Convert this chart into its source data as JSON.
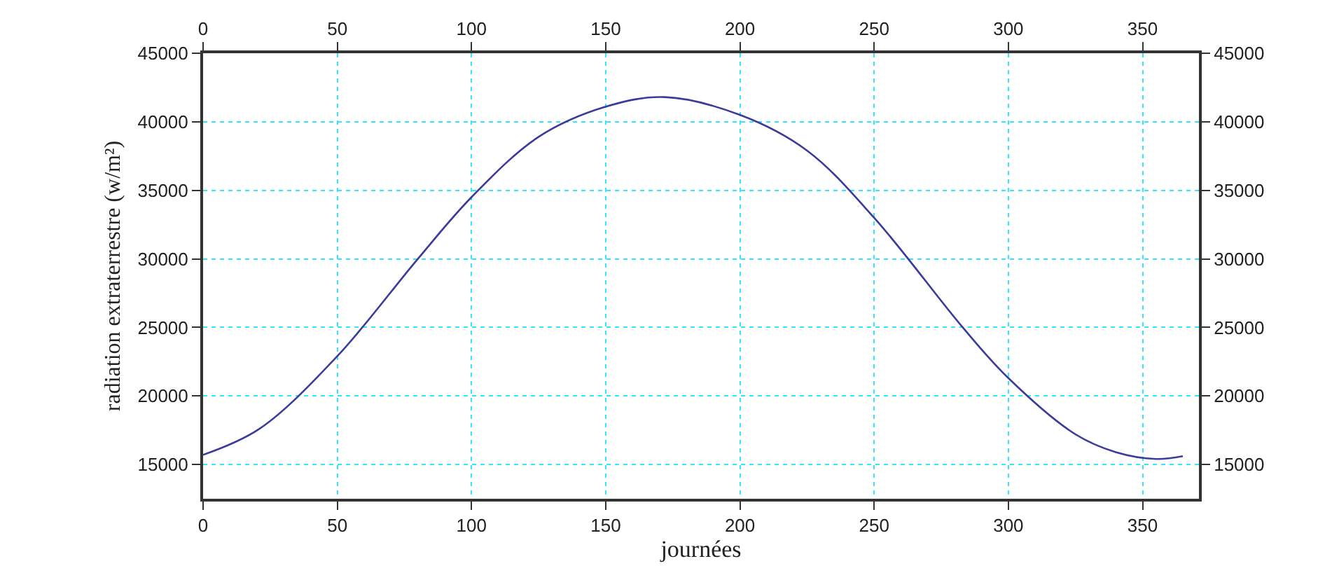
{
  "chart_data": {
    "type": "line",
    "xlabel": "journées",
    "ylabel": "radiation extraterrestre (w/m²)",
    "xlim": [
      0,
      371
    ],
    "xticks": [
      0,
      50,
      100,
      150,
      200,
      250,
      300,
      350
    ],
    "x2lim": [
      0,
      371
    ],
    "x2ticks": [
      0,
      50,
      100,
      150,
      200,
      250,
      300,
      350
    ],
    "ylim": [
      12500,
      45000
    ],
    "yticks": [
      15000,
      20000,
      25000,
      30000,
      35000,
      40000,
      45000
    ],
    "y2lim": [
      12500,
      45000
    ],
    "y2ticks": [
      15000,
      20000,
      25000,
      30000,
      35000,
      40000,
      45000
    ],
    "grid": true,
    "marker": "none",
    "line_style": "solid",
    "series": [
      {
        "color": "#3b3b9c",
        "x": [
          0,
          21,
          50,
          80,
          100,
          125,
          150,
          172,
          200,
          225,
          250,
          283,
          300,
          325,
          340,
          355,
          365
        ],
        "values": [
          15700,
          17600,
          22900,
          30000,
          34500,
          38900,
          41100,
          41800,
          40500,
          37900,
          33000,
          25000,
          21300,
          17200,
          15900,
          15400,
          15600
        ]
      }
    ]
  }
}
